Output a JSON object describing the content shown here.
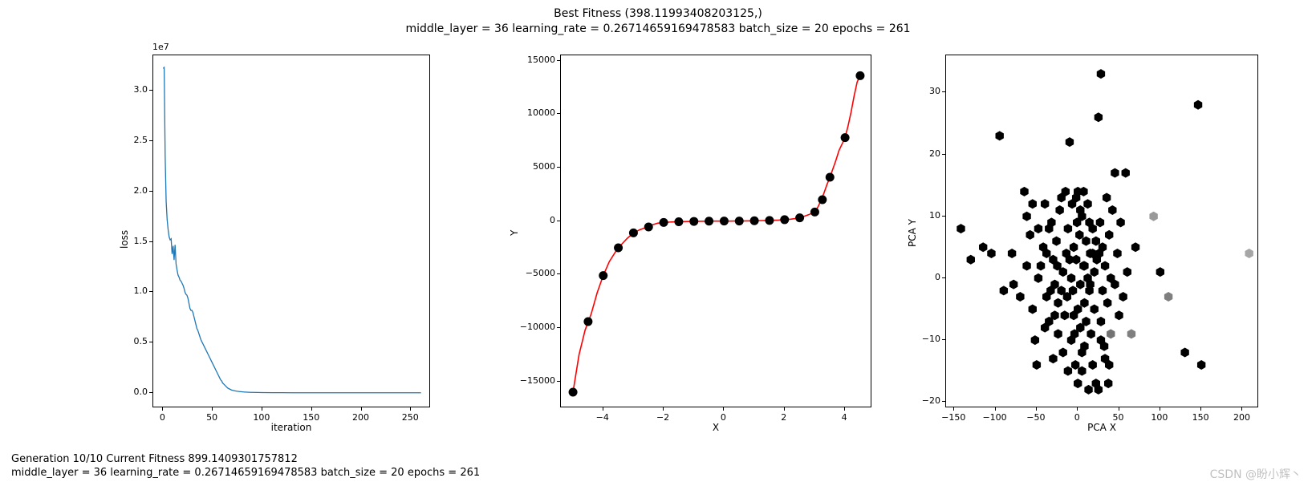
{
  "suptitle_line1": "Best Fitness (398.11993408203125,)",
  "suptitle_line2": "middle_layer = 36 learning_rate = 0.26714659169478583 batch_size = 20 epochs = 261",
  "footer_line1": "Generation 10/10 Current Fitness 899.1409301757812",
  "footer_line2": "middle_layer = 36 learning_rate = 0.26714659169478583 batch_size = 20 epochs = 261",
  "watermark": "CSDN @盼小辉丶",
  "colors": {
    "line_blue": "#1f77b4",
    "line_red": "#ff0000",
    "marker_black": "#000000",
    "axes_border": "#000000",
    "background": "#ffffff"
  },
  "loss_chart": {
    "type": "line",
    "xlabel": "iteration",
    "ylabel": "loss",
    "offset_text": "1e7",
    "xlim": [
      -10,
      270
    ],
    "ylim": [
      -0.15,
      3.35
    ],
    "xticks": [
      0,
      50,
      100,
      150,
      200,
      250
    ],
    "yticks": [
      0.0,
      0.5,
      1.0,
      1.5,
      2.0,
      2.5,
      3.0
    ],
    "line_color": "#1f77b4",
    "line_width": 1.3,
    "data": [
      [
        0,
        3.22
      ],
      [
        1,
        3.23
      ],
      [
        2,
        2.35
      ],
      [
        3,
        1.9
      ],
      [
        4,
        1.72
      ],
      [
        5,
        1.62
      ],
      [
        6,
        1.55
      ],
      [
        7,
        1.52
      ],
      [
        8,
        1.53
      ],
      [
        9,
        1.38
      ],
      [
        10,
        1.46
      ],
      [
        11,
        1.32
      ],
      [
        12,
        1.47
      ],
      [
        13,
        1.28
      ],
      [
        14,
        1.22
      ],
      [
        15,
        1.17
      ],
      [
        16,
        1.15
      ],
      [
        17,
        1.12
      ],
      [
        18,
        1.11
      ],
      [
        19,
        1.09
      ],
      [
        20,
        1.07
      ],
      [
        21,
        1.04
      ],
      [
        22,
        1.0
      ],
      [
        23,
        0.98
      ],
      [
        24,
        0.97
      ],
      [
        25,
        0.94
      ],
      [
        26,
        0.89
      ],
      [
        27,
        0.84
      ],
      [
        28,
        0.82
      ],
      [
        29,
        0.82
      ],
      [
        30,
        0.8
      ],
      [
        31,
        0.76
      ],
      [
        32,
        0.72
      ],
      [
        33,
        0.68
      ],
      [
        34,
        0.64
      ],
      [
        35,
        0.62
      ],
      [
        36,
        0.59
      ],
      [
        37,
        0.56
      ],
      [
        38,
        0.53
      ],
      [
        39,
        0.51
      ],
      [
        40,
        0.49
      ],
      [
        41,
        0.47
      ],
      [
        42,
        0.45
      ],
      [
        43,
        0.43
      ],
      [
        44,
        0.41
      ],
      [
        45,
        0.39
      ],
      [
        46,
        0.37
      ],
      [
        47,
        0.35
      ],
      [
        48,
        0.33
      ],
      [
        49,
        0.31
      ],
      [
        50,
        0.29
      ],
      [
        51,
        0.27
      ],
      [
        52,
        0.25
      ],
      [
        53,
        0.23
      ],
      [
        54,
        0.21
      ],
      [
        55,
        0.19
      ],
      [
        56,
        0.17
      ],
      [
        57,
        0.15
      ],
      [
        58,
        0.13
      ],
      [
        59,
        0.12
      ],
      [
        60,
        0.1
      ],
      [
        61,
        0.09
      ],
      [
        62,
        0.08
      ],
      [
        63,
        0.07
      ],
      [
        64,
        0.06
      ],
      [
        65,
        0.05
      ],
      [
        66,
        0.045
      ],
      [
        67,
        0.04
      ],
      [
        68,
        0.035
      ],
      [
        69,
        0.03
      ],
      [
        70,
        0.028
      ],
      [
        71,
        0.025
      ],
      [
        72,
        0.023
      ],
      [
        73,
        0.021
      ],
      [
        74,
        0.019
      ],
      [
        75,
        0.018
      ],
      [
        76,
        0.016
      ],
      [
        77,
        0.015
      ],
      [
        78,
        0.014
      ],
      [
        79,
        0.013
      ],
      [
        80,
        0.012
      ],
      [
        81,
        0.011
      ],
      [
        82,
        0.01
      ],
      [
        83,
        0.01
      ],
      [
        84,
        0.009
      ],
      [
        85,
        0.009
      ],
      [
        86,
        0.008
      ],
      [
        87,
        0.008
      ],
      [
        88,
        0.007
      ],
      [
        89,
        0.007
      ],
      [
        90,
        0.007
      ],
      [
        95,
        0.006
      ],
      [
        100,
        0.005
      ],
      [
        110,
        0.004
      ],
      [
        120,
        0.004
      ],
      [
        130,
        0.003
      ],
      [
        140,
        0.003
      ],
      [
        150,
        0.003
      ],
      [
        160,
        0.003
      ],
      [
        170,
        0.003
      ],
      [
        180,
        0.003
      ],
      [
        190,
        0.003
      ],
      [
        200,
        0.003
      ],
      [
        210,
        0.003
      ],
      [
        220,
        0.003
      ],
      [
        230,
        0.003
      ],
      [
        240,
        0.003
      ],
      [
        250,
        0.003
      ],
      [
        260,
        0.003
      ]
    ]
  },
  "fit_chart": {
    "type": "line+scatter",
    "xlabel": "X",
    "ylabel": "Y",
    "xlim": [
      -5.4,
      4.9
    ],
    "ylim": [
      -17500,
      15500
    ],
    "xticks": [
      -4,
      -2,
      0,
      2,
      4
    ],
    "yticks": [
      -15000,
      -10000,
      -5000,
      0,
      5000,
      10000,
      15000
    ],
    "line_color": "#ff0000",
    "line_width": 1.6,
    "marker_color": "#000000",
    "marker_size": 5.5,
    "points": [
      [
        -5.0,
        -16000
      ],
      [
        -4.5,
        -9400
      ],
      [
        -4.0,
        -5100
      ],
      [
        -3.5,
        -2500
      ],
      [
        -3.0,
        -1100
      ],
      [
        -2.5,
        -550
      ],
      [
        -2.0,
        -130
      ],
      [
        -1.5,
        -60
      ],
      [
        -1.0,
        -30
      ],
      [
        -0.5,
        -5
      ],
      [
        0.0,
        0
      ],
      [
        0.5,
        5
      ],
      [
        1.0,
        30
      ],
      [
        1.5,
        60
      ],
      [
        2.0,
        130
      ],
      [
        2.5,
        300
      ],
      [
        3.0,
        850
      ],
      [
        3.25,
        2000
      ],
      [
        3.5,
        4100
      ],
      [
        4.0,
        7800
      ],
      [
        4.5,
        13600
      ]
    ],
    "line": [
      [
        -5.0,
        -16000
      ],
      [
        -4.8,
        -12500
      ],
      [
        -4.6,
        -10200
      ],
      [
        -4.4,
        -8700
      ],
      [
        -4.2,
        -6700
      ],
      [
        -4.0,
        -5100
      ],
      [
        -3.8,
        -3800
      ],
      [
        -3.6,
        -2900
      ],
      [
        -3.4,
        -2200
      ],
      [
        -3.2,
        -1600
      ],
      [
        -3.0,
        -1120
      ],
      [
        -2.8,
        -820
      ],
      [
        -2.6,
        -620
      ],
      [
        -2.4,
        -370
      ],
      [
        -2.2,
        -200
      ],
      [
        -2.0,
        -130
      ],
      [
        -1.8,
        -90
      ],
      [
        -1.6,
        -70
      ],
      [
        -1.4,
        -55
      ],
      [
        -1.2,
        -40
      ],
      [
        -1.0,
        -30
      ],
      [
        -0.8,
        -18
      ],
      [
        -0.6,
        -10
      ],
      [
        -0.4,
        -4
      ],
      [
        -0.2,
        -1
      ],
      [
        0.0,
        0
      ],
      [
        0.2,
        1
      ],
      [
        0.4,
        4
      ],
      [
        0.6,
        10
      ],
      [
        0.8,
        18
      ],
      [
        1.0,
        30
      ],
      [
        1.2,
        40
      ],
      [
        1.4,
        55
      ],
      [
        1.6,
        70
      ],
      [
        1.8,
        90
      ],
      [
        2.0,
        130
      ],
      [
        2.2,
        180
      ],
      [
        2.4,
        250
      ],
      [
        2.6,
        400
      ],
      [
        2.8,
        600
      ],
      [
        3.0,
        850
      ],
      [
        3.1,
        1300
      ],
      [
        3.2,
        1900
      ],
      [
        3.3,
        2600
      ],
      [
        3.4,
        3400
      ],
      [
        3.5,
        4100
      ],
      [
        3.6,
        4900
      ],
      [
        3.7,
        5700
      ],
      [
        3.8,
        6600
      ],
      [
        3.9,
        7200
      ],
      [
        4.0,
        7800
      ],
      [
        4.1,
        8900
      ],
      [
        4.2,
        10200
      ],
      [
        4.3,
        11700
      ],
      [
        4.4,
        13000
      ],
      [
        4.5,
        13600
      ]
    ]
  },
  "pca_chart": {
    "type": "hexbin",
    "xlabel": "PCA X",
    "ylabel": "PCA Y",
    "xlim": [
      -160,
      220
    ],
    "ylim": [
      -21,
      36
    ],
    "xticks": [
      -150,
      -100,
      -50,
      0,
      50,
      100,
      150,
      200
    ],
    "yticks": [
      -20,
      -10,
      0,
      10,
      20,
      30
    ],
    "hex_size": 6,
    "points": [
      [
        -142,
        8,
        1
      ],
      [
        -130,
        3,
        1
      ],
      [
        -115,
        5,
        1
      ],
      [
        -105,
        4,
        1
      ],
      [
        -95,
        23,
        1
      ],
      [
        -90,
        -2,
        1
      ],
      [
        -80,
        4,
        1
      ],
      [
        -78,
        -1,
        1
      ],
      [
        -65,
        14,
        1
      ],
      [
        -62,
        10,
        1
      ],
      [
        -58,
        7,
        1
      ],
      [
        -55,
        -5,
        1
      ],
      [
        -52,
        -10,
        1
      ],
      [
        -50,
        -14,
        1
      ],
      [
        -48,
        0,
        1
      ],
      [
        -45,
        2,
        1
      ],
      [
        -42,
        5,
        1
      ],
      [
        -40,
        12,
        1
      ],
      [
        -38,
        -3,
        1
      ],
      [
        -35,
        -7,
        1
      ],
      [
        -32,
        9,
        1
      ],
      [
        -30,
        3,
        1
      ],
      [
        -28,
        -1,
        1
      ],
      [
        -26,
        6,
        1
      ],
      [
        -24,
        -4,
        1
      ],
      [
        -22,
        11,
        1
      ],
      [
        -20,
        13,
        1
      ],
      [
        -18,
        1,
        1
      ],
      [
        -16,
        -6,
        1
      ],
      [
        -14,
        4,
        1
      ],
      [
        -12,
        8,
        1
      ],
      [
        -10,
        22,
        1
      ],
      [
        -8,
        0,
        1
      ],
      [
        -6,
        -2,
        1
      ],
      [
        -5,
        5,
        1
      ],
      [
        -4,
        -9,
        1
      ],
      [
        -2,
        3,
        1
      ],
      [
        0,
        14,
        1
      ],
      [
        0,
        -5,
        1
      ],
      [
        2,
        7,
        1
      ],
      [
        3,
        -1,
        1
      ],
      [
        5,
        10,
        1
      ],
      [
        5,
        -12,
        1
      ],
      [
        7,
        2,
        1
      ],
      [
        8,
        -4,
        1
      ],
      [
        10,
        6,
        1
      ],
      [
        10,
        -7,
        1
      ],
      [
        12,
        0,
        1
      ],
      [
        12,
        12,
        1
      ],
      [
        14,
        -2,
        1
      ],
      [
        15,
        4,
        1
      ],
      [
        16,
        -9,
        1
      ],
      [
        18,
        8,
        1
      ],
      [
        18,
        -14,
        1
      ],
      [
        20,
        1,
        1
      ],
      [
        20,
        -5,
        1
      ],
      [
        22,
        -17,
        1
      ],
      [
        23,
        3,
        1
      ],
      [
        25,
        26,
        1
      ],
      [
        25,
        -18,
        1
      ],
      [
        27,
        9,
        1
      ],
      [
        28,
        -7,
        1
      ],
      [
        28,
        33,
        1
      ],
      [
        30,
        -2,
        1
      ],
      [
        30,
        5,
        1
      ],
      [
        32,
        -11,
        1
      ],
      [
        33,
        2,
        1
      ],
      [
        35,
        13,
        1
      ],
      [
        36,
        -4,
        1
      ],
      [
        38,
        7,
        1
      ],
      [
        38,
        -14,
        1
      ],
      [
        40,
        0,
        1
      ],
      [
        40,
        -9,
        0.55
      ],
      [
        42,
        11,
        1
      ],
      [
        45,
        -1,
        1
      ],
      [
        45,
        17,
        1
      ],
      [
        48,
        4,
        1
      ],
      [
        50,
        -6,
        1
      ],
      [
        52,
        9,
        1
      ],
      [
        55,
        -3,
        1
      ],
      [
        58,
        17,
        1
      ],
      [
        60,
        1,
        1
      ],
      [
        65,
        -9,
        0.5
      ],
      [
        70,
        5,
        1
      ],
      [
        92,
        10,
        0.4
      ],
      [
        100,
        1,
        1
      ],
      [
        110,
        -3,
        0.5
      ],
      [
        130,
        -12,
        1
      ],
      [
        146,
        28,
        1
      ],
      [
        150,
        -14,
        1
      ],
      [
        208,
        4,
        0.35
      ],
      [
        -3,
        -14,
        1
      ],
      [
        0,
        -17,
        1
      ],
      [
        5,
        -15,
        1
      ],
      [
        8,
        -11,
        1
      ],
      [
        13,
        -18,
        1
      ],
      [
        -18,
        -12,
        1
      ],
      [
        -12,
        -15,
        1
      ],
      [
        -8,
        -10,
        1
      ],
      [
        3,
        11,
        1
      ],
      [
        -2,
        13,
        1
      ],
      [
        7,
        14,
        1
      ],
      [
        -15,
        14,
        1
      ],
      [
        -7,
        12,
        1
      ],
      [
        14,
        9,
        1
      ],
      [
        -24,
        -9,
        1
      ],
      [
        -30,
        -13,
        1
      ],
      [
        33,
        -13,
        1
      ],
      [
        37,
        -17,
        1
      ],
      [
        28,
        -10,
        1
      ],
      [
        -40,
        -8,
        1
      ],
      [
        -35,
        8,
        1
      ],
      [
        -38,
        4,
        1
      ],
      [
        22,
        6,
        1
      ],
      [
        26,
        4,
        1
      ],
      [
        18,
        4,
        1
      ],
      [
        15,
        -1,
        1
      ],
      [
        8,
        2,
        1
      ],
      [
        3,
        -8,
        1
      ],
      [
        -5,
        -6,
        1
      ],
      [
        -1,
        9,
        1
      ],
      [
        -10,
        3,
        1
      ],
      [
        -13,
        -3,
        1
      ],
      [
        -20,
        -2,
        1
      ],
      [
        -25,
        2,
        1
      ],
      [
        -28,
        -6,
        1
      ],
      [
        -33,
        -2,
        1
      ],
      [
        -48,
        8,
        1
      ],
      [
        -55,
        12,
        1
      ],
      [
        -62,
        2,
        1
      ],
      [
        -70,
        -3,
        1
      ]
    ]
  }
}
